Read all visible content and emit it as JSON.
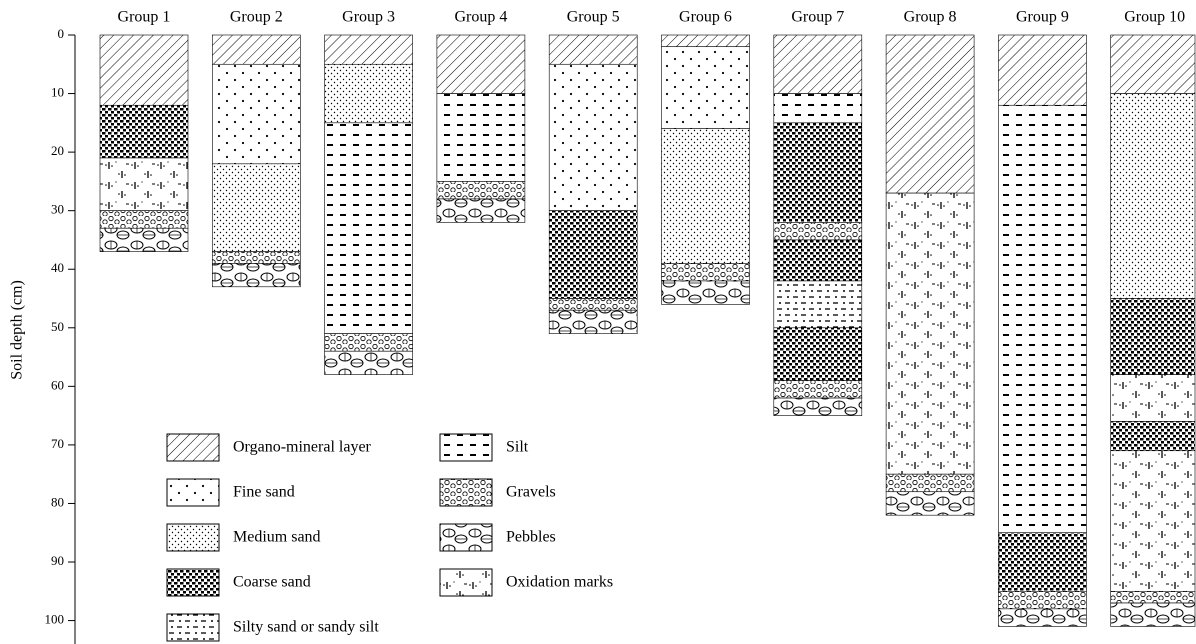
{
  "chart_data": {
    "type": "profile",
    "y_label": "Soil depth (cm)",
    "ylim": [
      0,
      104
    ],
    "yticks": [
      0,
      10,
      20,
      30,
      40,
      50,
      60,
      70,
      80,
      90,
      100
    ],
    "legend": [
      "Organo-mineral layer",
      "Fine sand",
      "Medium sand",
      "Coarse sand",
      "Silty sand or sandy silt",
      "Silt",
      "Gravels",
      "Pebbles",
      "Oxidation marks"
    ],
    "groups": [
      {
        "name": "Group 1",
        "layers": [
          {
            "layer": "Organo-mineral layer",
            "top": 0,
            "bottom": 12
          },
          {
            "layer": "Coarse sand",
            "top": 12,
            "bottom": 21
          },
          {
            "layer": "Oxidation marks",
            "top": 21,
            "bottom": 30
          },
          {
            "layer": "Gravels",
            "top": 30,
            "bottom": 33
          },
          {
            "layer": "Pebbles",
            "top": 33,
            "bottom": 37
          }
        ]
      },
      {
        "name": "Group 2",
        "layers": [
          {
            "layer": "Organo-mineral layer",
            "top": 0,
            "bottom": 5
          },
          {
            "layer": "Fine sand",
            "top": 5,
            "bottom": 22
          },
          {
            "layer": "Medium sand",
            "top": 22,
            "bottom": 37
          },
          {
            "layer": "Gravels",
            "top": 37,
            "bottom": 39
          },
          {
            "layer": "Pebbles",
            "top": 39,
            "bottom": 43
          }
        ]
      },
      {
        "name": "Group 3",
        "layers": [
          {
            "layer": "Organo-mineral layer",
            "top": 0,
            "bottom": 5
          },
          {
            "layer": "Medium sand",
            "top": 5,
            "bottom": 15
          },
          {
            "layer": "Silt",
            "top": 15,
            "bottom": 51
          },
          {
            "layer": "Gravels",
            "top": 51,
            "bottom": 54
          },
          {
            "layer": "Pebbles",
            "top": 54,
            "bottom": 58
          }
        ]
      },
      {
        "name": "Group 4",
        "layers": [
          {
            "layer": "Organo-mineral layer",
            "top": 0,
            "bottom": 10
          },
          {
            "layer": "Silt",
            "top": 10,
            "bottom": 25
          },
          {
            "layer": "Gravels",
            "top": 25,
            "bottom": 28
          },
          {
            "layer": "Pebbles",
            "top": 28,
            "bottom": 32
          }
        ]
      },
      {
        "name": "Group 5",
        "layers": [
          {
            "layer": "Organo-mineral layer",
            "top": 0,
            "bottom": 5
          },
          {
            "layer": "Fine sand",
            "top": 5,
            "bottom": 30
          },
          {
            "layer": "Coarse sand",
            "top": 30,
            "bottom": 45
          },
          {
            "layer": "Gravels",
            "top": 45,
            "bottom": 47
          },
          {
            "layer": "Pebbles",
            "top": 47,
            "bottom": 51
          }
        ]
      },
      {
        "name": "Group 6",
        "layers": [
          {
            "layer": "Organo-mineral layer",
            "top": 0,
            "bottom": 2
          },
          {
            "layer": "Fine sand",
            "top": 2,
            "bottom": 16
          },
          {
            "layer": "Medium sand",
            "top": 16,
            "bottom": 39
          },
          {
            "layer": "Gravels",
            "top": 39,
            "bottom": 42
          },
          {
            "layer": "Pebbles",
            "top": 42,
            "bottom": 46
          }
        ]
      },
      {
        "name": "Group 7",
        "layers": [
          {
            "layer": "Organo-mineral layer",
            "top": 0,
            "bottom": 10
          },
          {
            "layer": "Silt",
            "top": 10,
            "bottom": 15
          },
          {
            "layer": "Coarse sand",
            "top": 15,
            "bottom": 32
          },
          {
            "layer": "Gravels",
            "top": 32,
            "bottom": 35
          },
          {
            "layer": "Coarse sand",
            "top": 35,
            "bottom": 42
          },
          {
            "layer": "Silty sand or sandy silt",
            "top": 42,
            "bottom": 50
          },
          {
            "layer": "Coarse sand",
            "top": 50,
            "bottom": 59
          },
          {
            "layer": "Gravels",
            "top": 59,
            "bottom": 62
          },
          {
            "layer": "Pebbles",
            "top": 62,
            "bottom": 65
          }
        ]
      },
      {
        "name": "Group 8",
        "layers": [
          {
            "layer": "Organo-mineral layer",
            "top": 0,
            "bottom": 27
          },
          {
            "layer": "Oxidation marks",
            "top": 27,
            "bottom": 75
          },
          {
            "layer": "Gravels",
            "top": 75,
            "bottom": 78
          },
          {
            "layer": "Pebbles",
            "top": 78,
            "bottom": 82
          }
        ]
      },
      {
        "name": "Group 9",
        "layers": [
          {
            "layer": "Organo-mineral layer",
            "top": 0,
            "bottom": 12
          },
          {
            "layer": "Silt",
            "top": 12,
            "bottom": 85
          },
          {
            "layer": "Coarse sand",
            "top": 85,
            "bottom": 95
          },
          {
            "layer": "Gravels",
            "top": 95,
            "bottom": 98
          },
          {
            "layer": "Pebbles",
            "top": 98,
            "bottom": 101
          }
        ]
      },
      {
        "name": "Group 10",
        "layers": [
          {
            "layer": "Organo-mineral layer",
            "top": 0,
            "bottom": 10
          },
          {
            "layer": "Medium sand",
            "top": 10,
            "bottom": 45
          },
          {
            "layer": "Coarse sand",
            "top": 45,
            "bottom": 58
          },
          {
            "layer": "Oxidation marks",
            "top": 58,
            "bottom": 66
          },
          {
            "layer": "Coarse sand",
            "top": 66,
            "bottom": 71
          },
          {
            "layer": "Oxidation marks",
            "top": 71,
            "bottom": 95
          },
          {
            "layer": "Gravels",
            "top": 95,
            "bottom": 97
          },
          {
            "layer": "Pebbles",
            "top": 97,
            "bottom": 101
          }
        ]
      }
    ]
  }
}
